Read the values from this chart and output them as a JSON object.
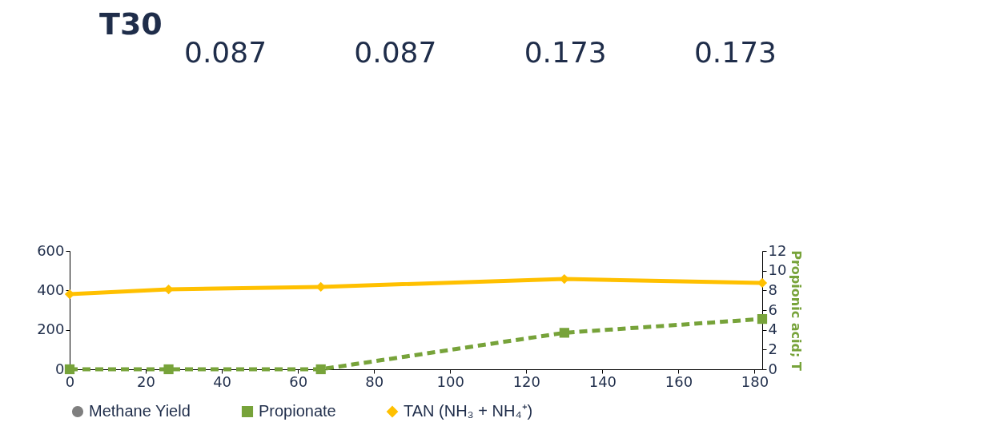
{
  "chart_data": {
    "type": "line",
    "title": "T30",
    "y2label": "Propionic acid; T",
    "annotations": [
      "0.087",
      "0.087",
      "0.173",
      "0.173"
    ],
    "x": [
      0,
      26,
      66,
      130,
      182
    ],
    "series": [
      {
        "name": "Methane Yield",
        "type": "scatter",
        "marker": "circle",
        "color": "#7f7f7f",
        "values": [
          null,
          null,
          null,
          null,
          null
        ]
      },
      {
        "name": "Propionate",
        "type": "line",
        "marker": "square",
        "line_style": "dashed",
        "color": "#77a33a",
        "axis": "y2",
        "values": [
          0,
          0,
          0,
          3.7,
          5.1
        ]
      },
      {
        "name": "TAN (NH₃ + NH₄⁺)",
        "type": "line",
        "marker": "diamond",
        "line_style": "solid",
        "color": "#ffc000",
        "values": [
          381,
          405,
          418,
          458,
          438
        ]
      }
    ],
    "xlim": [
      0,
      182
    ],
    "xticks": [
      0,
      20,
      40,
      60,
      80,
      100,
      120,
      140,
      160,
      180
    ],
    "ylim": [
      0,
      600
    ],
    "yticks": [
      0,
      200,
      400,
      600
    ],
    "y2lim": [
      0,
      12
    ],
    "y2ticks": [
      0,
      2,
      4,
      6,
      8,
      10,
      12
    ],
    "grid": false,
    "legend": "bottom"
  }
}
